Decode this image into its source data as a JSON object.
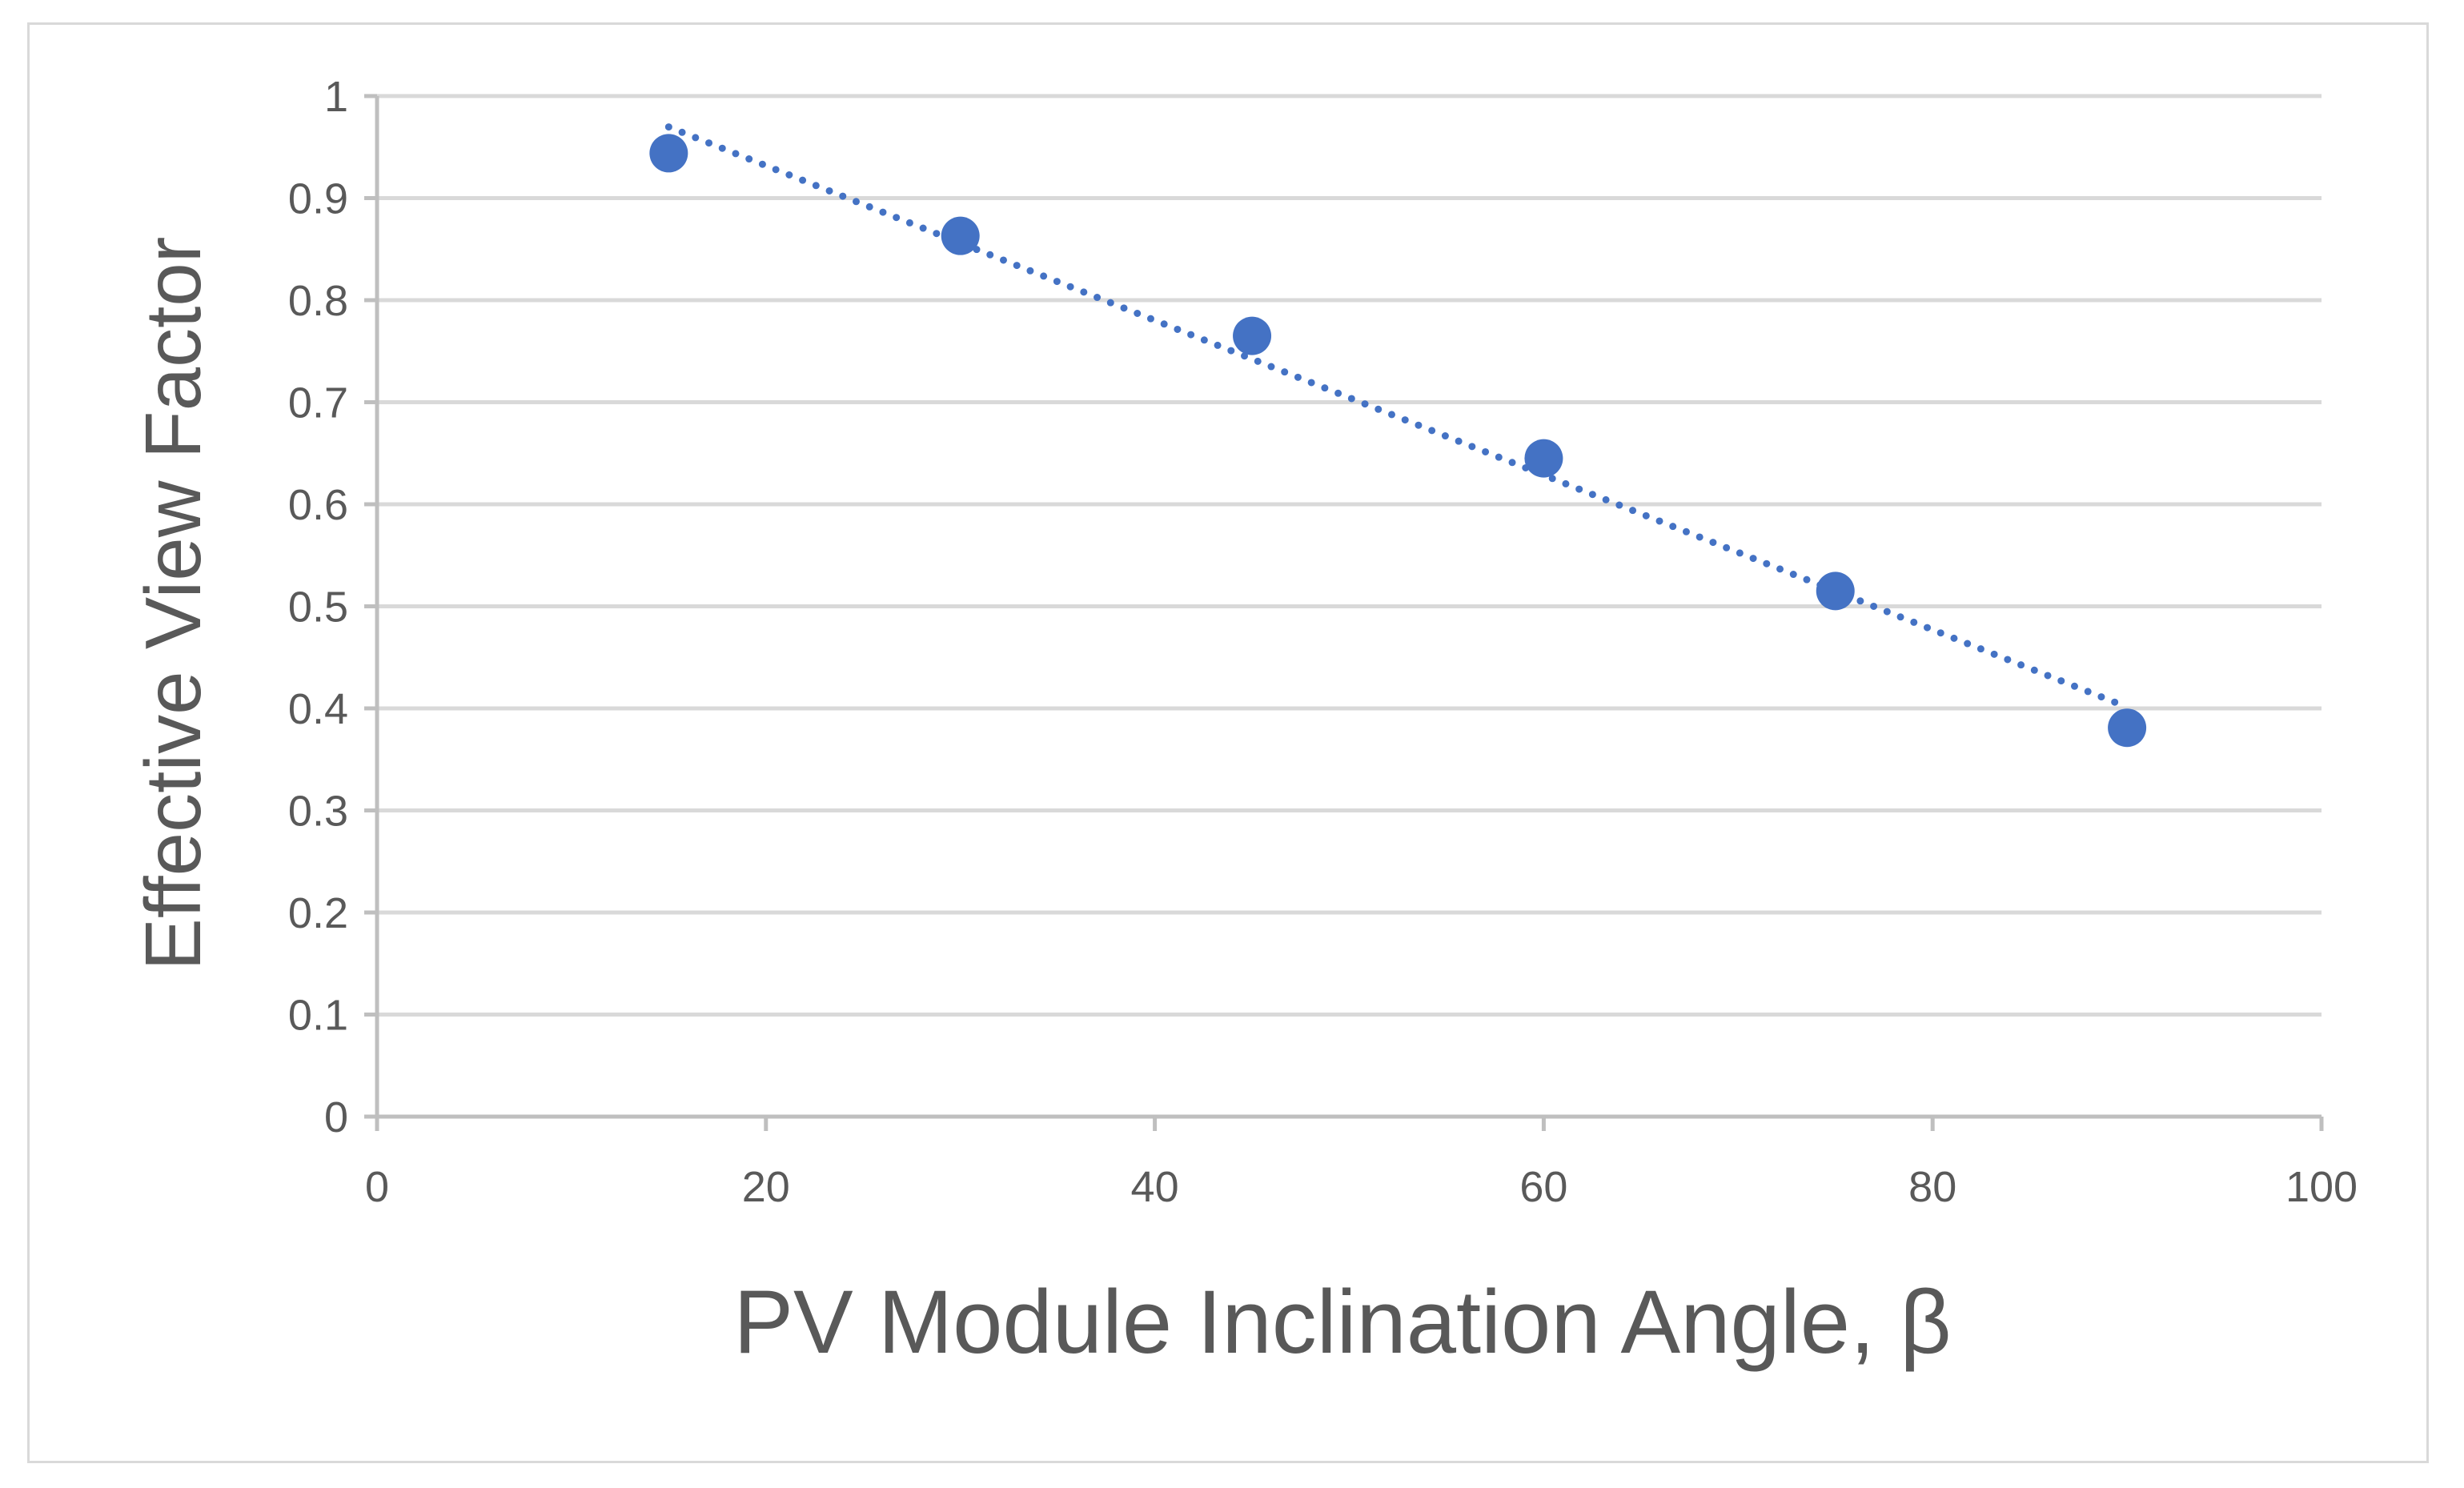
{
  "chart_data": {
    "type": "scatter",
    "title": "",
    "xlabel": "PV Module Inclination Angle, β",
    "ylabel": "Effective View Factor",
    "xlim": [
      0,
      100
    ],
    "ylim": [
      0,
      1
    ],
    "xticks": [
      0,
      20,
      40,
      60,
      80,
      100
    ],
    "yticks": [
      0,
      0.1,
      0.2,
      0.3,
      0.4,
      0.5,
      0.6,
      0.7,
      0.8,
      0.9,
      1
    ],
    "grid": "horizontal",
    "legend": "none",
    "series": [
      {
        "name": "Effective View Factor",
        "marker": "circle",
        "trendline": "linear-dotted",
        "x": [
          15,
          30,
          45,
          60,
          75,
          90
        ],
        "y": [
          0.944,
          0.863,
          0.765,
          0.645,
          0.515,
          0.381
        ]
      }
    ],
    "colors": {
      "series": "#4472c4",
      "grid": "#d9d9d9",
      "axis": "#bfbfbf",
      "text": "#595959"
    }
  }
}
